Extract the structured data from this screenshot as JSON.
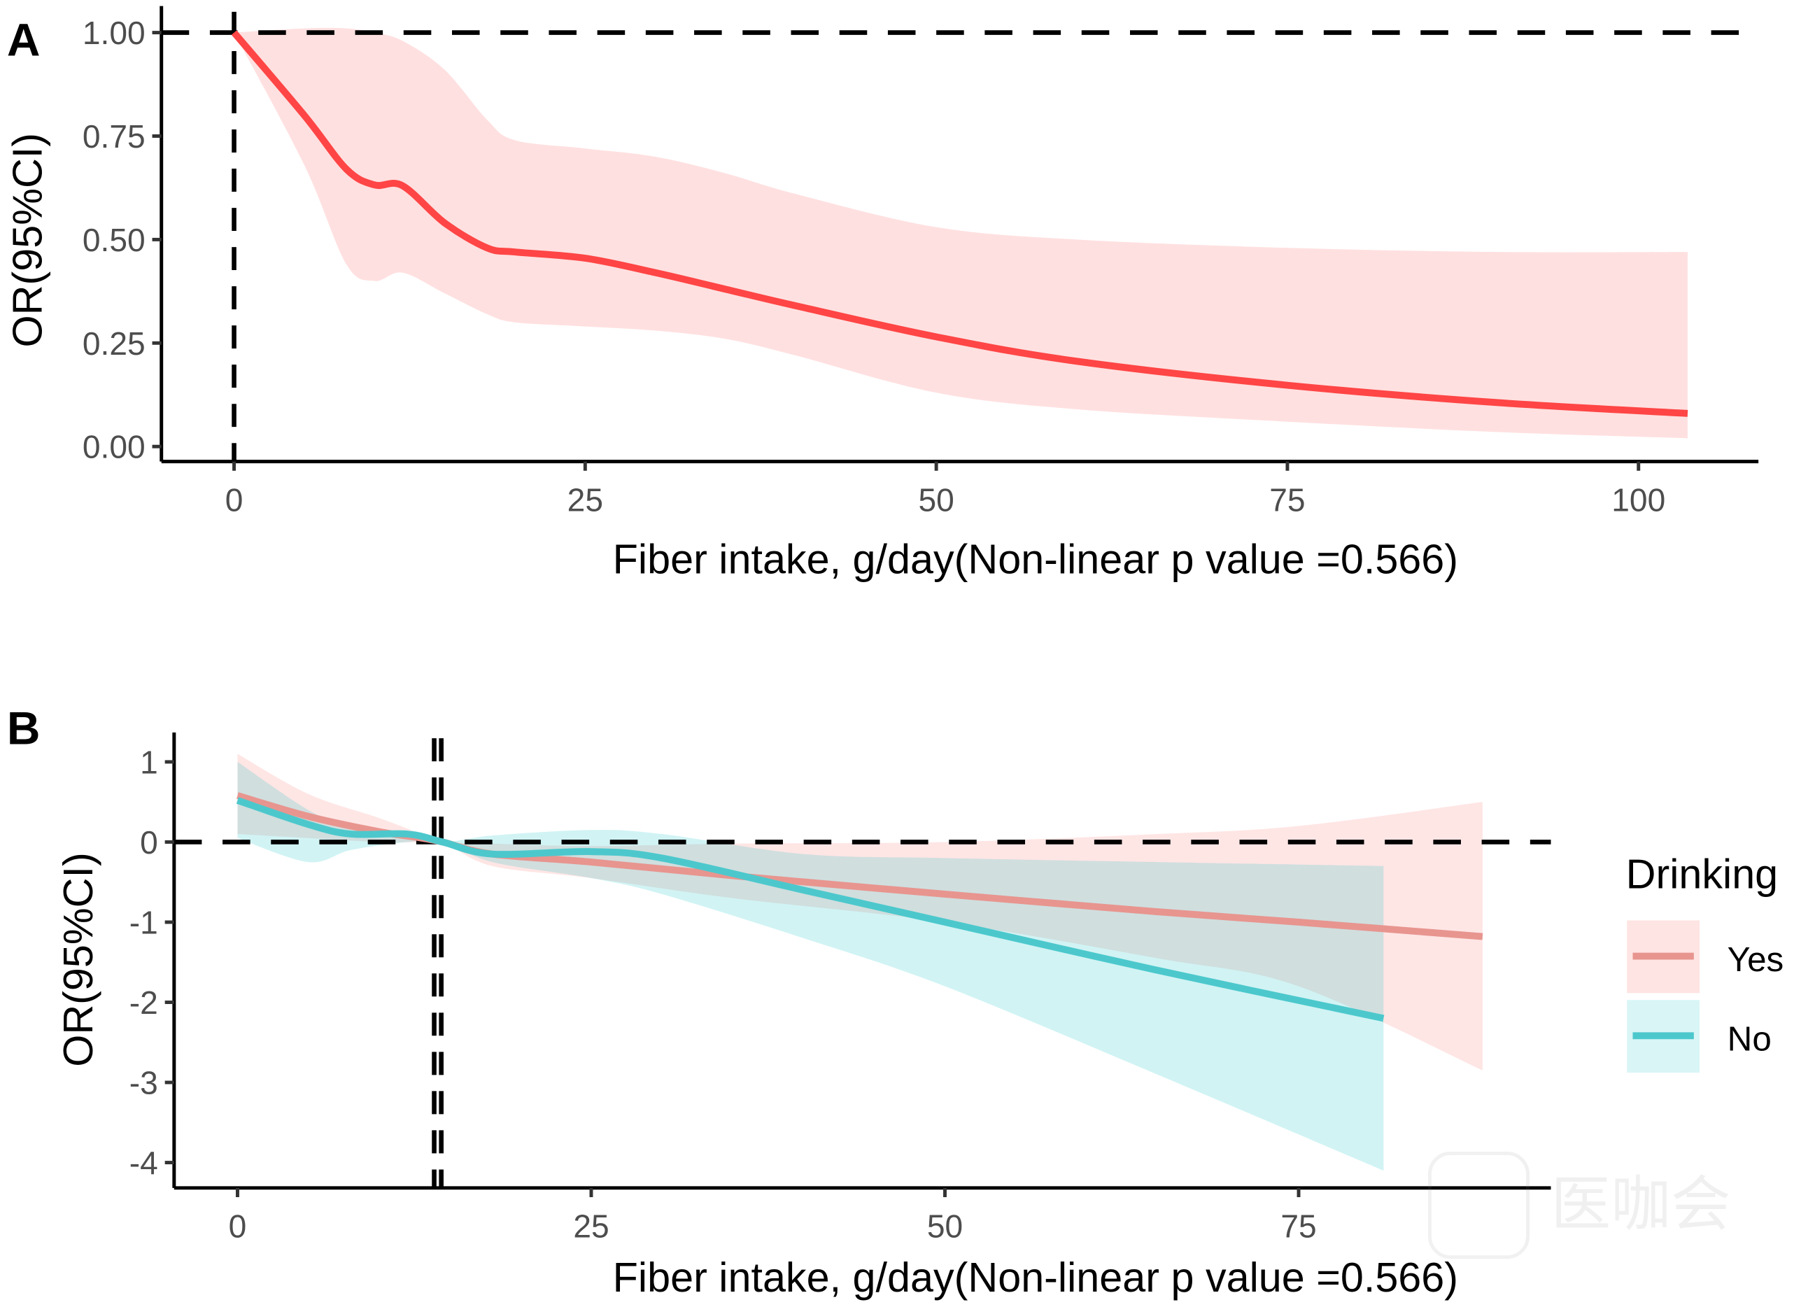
{
  "chart_data": [
    {
      "panel_label": "A",
      "type": "line",
      "xlabel": "Fiber intake, g/day(Non-linear p value =0.566)",
      "ylabel": "OR(95%CI)",
      "xlim": [
        -5,
        108
      ],
      "ylim": [
        -0.03,
        1.04
      ],
      "xticks": [
        0,
        25,
        50,
        75,
        100
      ],
      "xtick_labels": [
        "0",
        "25",
        "50",
        "75",
        "100"
      ],
      "yticks": [
        0,
        0.25,
        0.5,
        0.75,
        1.0
      ],
      "ytick_labels": [
        "0.00",
        "0.25",
        "0.50",
        "0.75",
        "1.00"
      ],
      "reference_lines": {
        "y": 1.0,
        "x": [
          0
        ]
      },
      "grid": false,
      "series": [
        {
          "name": "OR",
          "color": "#FF4545",
          "band_color": "#FFE0E0",
          "x": [
            0,
            5,
            8,
            10,
            12,
            15,
            18,
            20,
            25,
            30,
            35,
            40,
            50,
            60,
            75,
            90,
            103.5
          ],
          "y": [
            1.0,
            0.8,
            0.67,
            0.632,
            0.63,
            0.54,
            0.48,
            0.47,
            0.455,
            0.42,
            0.38,
            0.34,
            0.265,
            0.206,
            0.148,
            0.106,
            0.08
          ],
          "upper": [
            1.0,
            1.01,
            1.01,
            1.0,
            0.98,
            0.91,
            0.79,
            0.74,
            0.72,
            0.7,
            0.66,
            0.61,
            0.53,
            0.5,
            0.48,
            0.47,
            0.47
          ],
          "lower": [
            1.0,
            0.68,
            0.44,
            0.4,
            0.42,
            0.37,
            0.32,
            0.3,
            0.29,
            0.28,
            0.26,
            0.22,
            0.13,
            0.09,
            0.06,
            0.035,
            0.02
          ]
        }
      ]
    },
    {
      "panel_label": "B",
      "type": "line",
      "xlabel": "Fiber intake, g/day(Non-linear p value =0.566)",
      "ylabel": "OR(95%CI)",
      "xlim": [
        -3,
        92
      ],
      "ylim": [
        -4.4,
        1.4
      ],
      "xticks": [
        0,
        25,
        50,
        75
      ],
      "xtick_labels": [
        "0",
        "25",
        "50",
        "75"
      ],
      "yticks": [
        -4,
        -3,
        -2,
        -1,
        0,
        1
      ],
      "ytick_labels": [
        "-4",
        "-3",
        "-2",
        "-1",
        "0",
        "1"
      ],
      "reference_lines": {
        "y": 0,
        "x": [
          13.9,
          14.4
        ]
      },
      "grid": false,
      "legend": {
        "title": "Drinking",
        "position": "right"
      },
      "series": [
        {
          "name": "Yes",
          "color": "#E8958F",
          "band_color": "#F8766D",
          "x": [
            0,
            5,
            10,
            13,
            14.5,
            18,
            25,
            35,
            50,
            65,
            75,
            88
          ],
          "y": [
            0.58,
            0.32,
            0.13,
            0.05,
            0.0,
            -0.15,
            -0.25,
            -0.42,
            -0.65,
            -0.87,
            -1.0,
            -1.18
          ],
          "upper": [
            1.1,
            0.6,
            0.3,
            0.1,
            0.0,
            -0.02,
            -0.05,
            -0.02,
            0.0,
            0.1,
            0.2,
            0.5
          ],
          "lower": [
            0.1,
            0.05,
            0.0,
            0.0,
            0.0,
            -0.3,
            -0.45,
            -0.7,
            -1.0,
            -1.45,
            -1.8,
            -2.85
          ]
        },
        {
          "name": "No",
          "color": "#4CC8CC",
          "band_color": "#00BFC4",
          "x": [
            0,
            5,
            8,
            12,
            14.5,
            18,
            25,
            30,
            40,
            50,
            65,
            81
          ],
          "y": [
            0.52,
            0.22,
            0.1,
            0.1,
            0.0,
            -0.15,
            -0.12,
            -0.2,
            -0.6,
            -1.0,
            -1.6,
            -2.2
          ],
          "upper": [
            1.0,
            0.4,
            0.2,
            0.1,
            0.0,
            0.08,
            0.15,
            0.1,
            -0.15,
            -0.2,
            -0.25,
            -0.3
          ],
          "lower": [
            0.05,
            -0.25,
            -0.1,
            0.0,
            0.0,
            -0.25,
            -0.45,
            -0.65,
            -1.2,
            -1.8,
            -2.9,
            -4.1
          ]
        }
      ]
    }
  ],
  "watermark": "医咖会 MEDIECOGROUP"
}
